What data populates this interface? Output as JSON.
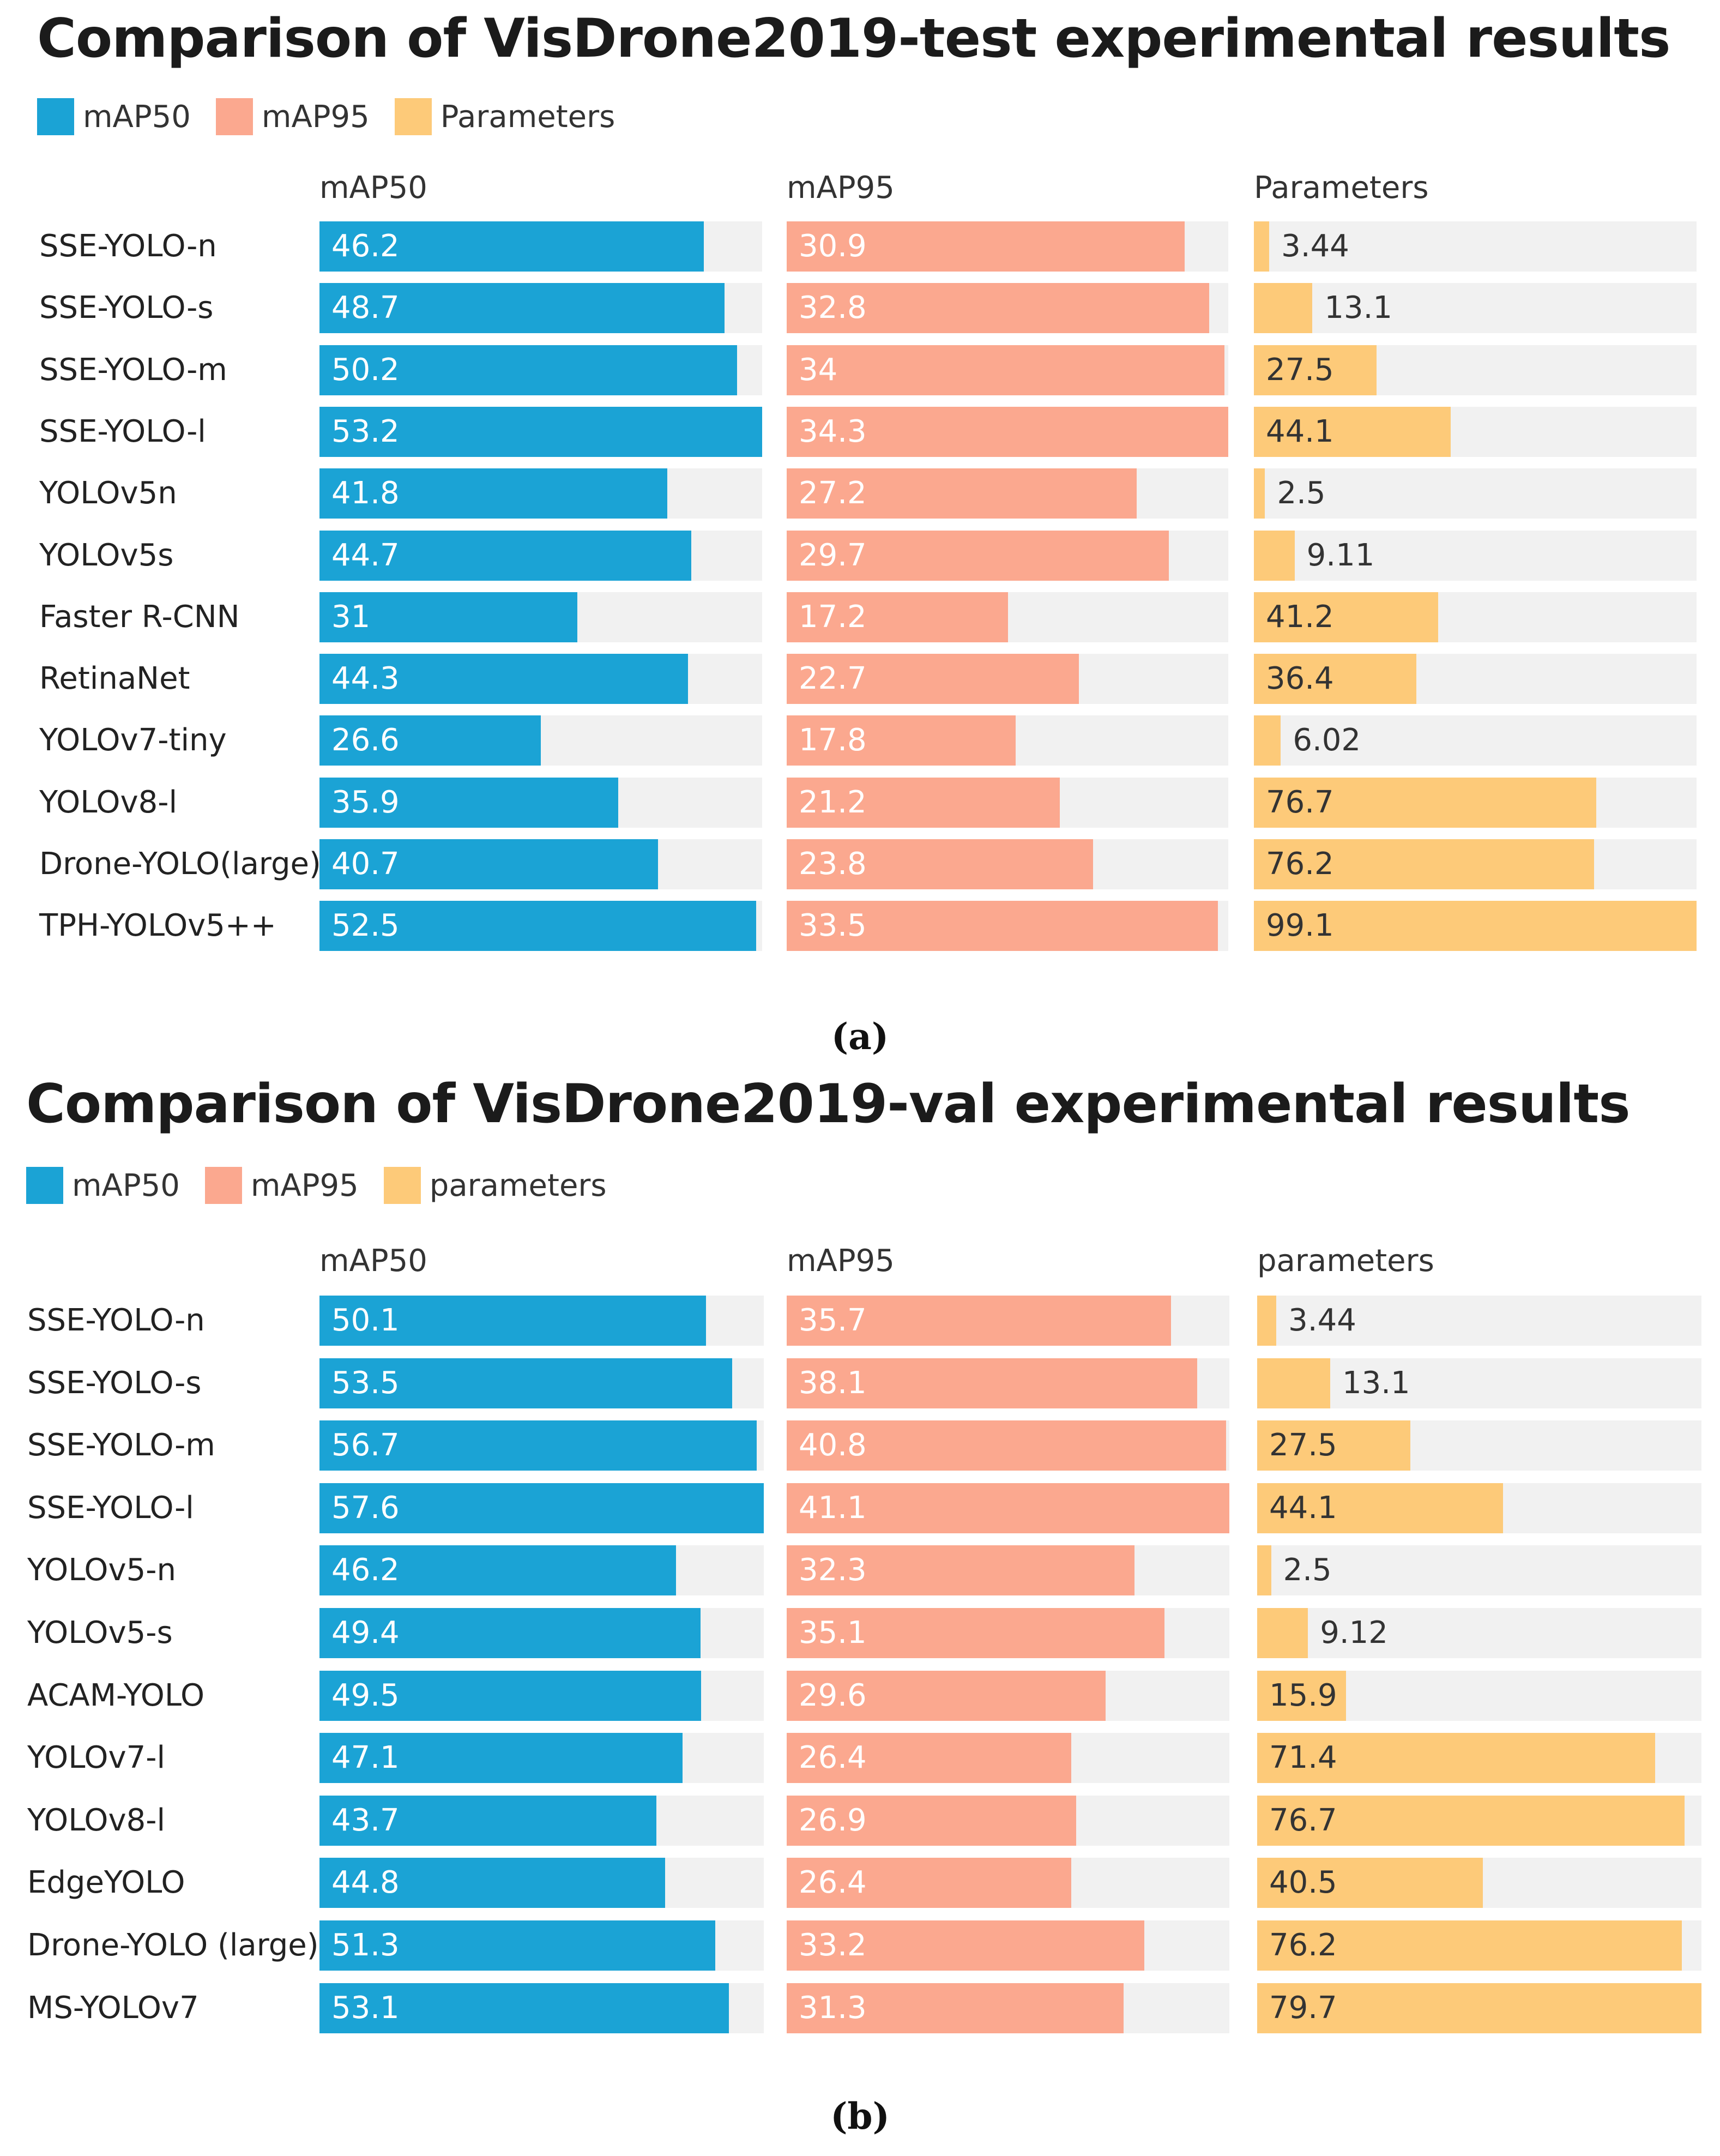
{
  "colors": {
    "mAP50": "#1ba3d5",
    "mAP95": "#fba88f",
    "params": "#fdca79",
    "track": "#f1f1f1"
  },
  "chart_data": [
    {
      "type": "bar",
      "title": "Comparison of VisDrone2019-test experimental results",
      "caption": "(a)",
      "legend": [
        "mAP50",
        "mAP95",
        "Parameters"
      ],
      "column_headers": [
        "mAP50",
        "mAP95",
        "Parameters"
      ],
      "categories": [
        "SSE-YOLO-n",
        "SSE-YOLO-s",
        "SSE-YOLO-m",
        "SSE-YOLO-l",
        "YOLOv5n",
        "YOLOv5s",
        "Faster R-CNN",
        "RetinaNet",
        "YOLOv7-tiny",
        "YOLOv8-l",
        "Drone-YOLO(large)",
        "TPH-YOLOv5++"
      ],
      "series": [
        {
          "name": "mAP50",
          "values": [
            46.2,
            48.7,
            50.2,
            53.2,
            41.8,
            44.7,
            31,
            44.3,
            26.6,
            35.9,
            40.7,
            52.5
          ],
          "labels": [
            "46.2",
            "48.7",
            "50.2",
            "53.2",
            "41.8",
            "44.7",
            "31",
            "44.3",
            "26.6",
            "35.9",
            "40.7",
            "52.5"
          ]
        },
        {
          "name": "mAP95",
          "values": [
            30.9,
            32.8,
            34,
            34.3,
            27.2,
            29.7,
            17.2,
            22.7,
            17.8,
            21.2,
            23.8,
            33.5
          ],
          "labels": [
            "30.9",
            "32.8",
            "34",
            "34.3",
            "27.2",
            "29.7",
            "17.2",
            "22.7",
            "17.8",
            "21.2",
            "23.8",
            "33.5"
          ]
        },
        {
          "name": "Parameters",
          "values": [
            3.44,
            13.1,
            27.5,
            44.1,
            2.5,
            9.11,
            41.2,
            36.4,
            6.02,
            76.7,
            76.2,
            99.1
          ],
          "labels": [
            "3.44",
            "13.1",
            "27.5",
            "44.1",
            "2.5",
            "9.11",
            "41.2",
            "36.4",
            "6.02",
            "76.7",
            "76.2",
            "99.1"
          ]
        }
      ]
    },
    {
      "type": "bar",
      "title": "Comparison of VisDrone2019-val experimental results",
      "caption": "(b)",
      "legend": [
        "mAP50",
        "mAP95",
        "parameters"
      ],
      "column_headers": [
        "mAP50",
        "mAP95",
        "parameters"
      ],
      "categories": [
        "SSE-YOLO-n",
        "SSE-YOLO-s",
        "SSE-YOLO-m",
        "SSE-YOLO-l",
        "YOLOv5-n",
        "YOLOv5-s",
        "ACAM-YOLO",
        "YOLOv7-l",
        "YOLOv8-l",
        "EdgeYOLO",
        "Drone-YOLO (large)",
        "MS-YOLOv7"
      ],
      "series": [
        {
          "name": "mAP50",
          "values": [
            50.1,
            53.5,
            56.7,
            57.6,
            46.2,
            49.4,
            49.5,
            47.1,
            43.7,
            44.8,
            51.3,
            53.1
          ],
          "labels": [
            "50.1",
            "53.5",
            "56.7",
            "57.6",
            "46.2",
            "49.4",
            "49.5",
            "47.1",
            "43.7",
            "44.8",
            "51.3",
            "53.1"
          ]
        },
        {
          "name": "mAP95",
          "values": [
            35.7,
            38.1,
            40.8,
            41.1,
            32.3,
            35.1,
            29.6,
            26.4,
            26.9,
            26.4,
            33.2,
            31.3
          ],
          "labels": [
            "35.7",
            "38.1",
            "40.8",
            "41.1",
            "32.3",
            "35.1",
            "29.6",
            "26.4",
            "26.9",
            "26.4",
            "33.2",
            "31.3"
          ]
        },
        {
          "name": "parameters",
          "values": [
            3.44,
            13.1,
            27.5,
            44.1,
            2.5,
            9.12,
            15.9,
            71.4,
            76.7,
            40.5,
            76.2,
            79.7
          ],
          "labels": [
            "3.44",
            "13.1",
            "27.5",
            "44.1",
            "2.5",
            "9.12",
            "15.9",
            "71.4",
            "76.7",
            "40.5",
            "76.2",
            "79.7"
          ]
        }
      ]
    }
  ]
}
